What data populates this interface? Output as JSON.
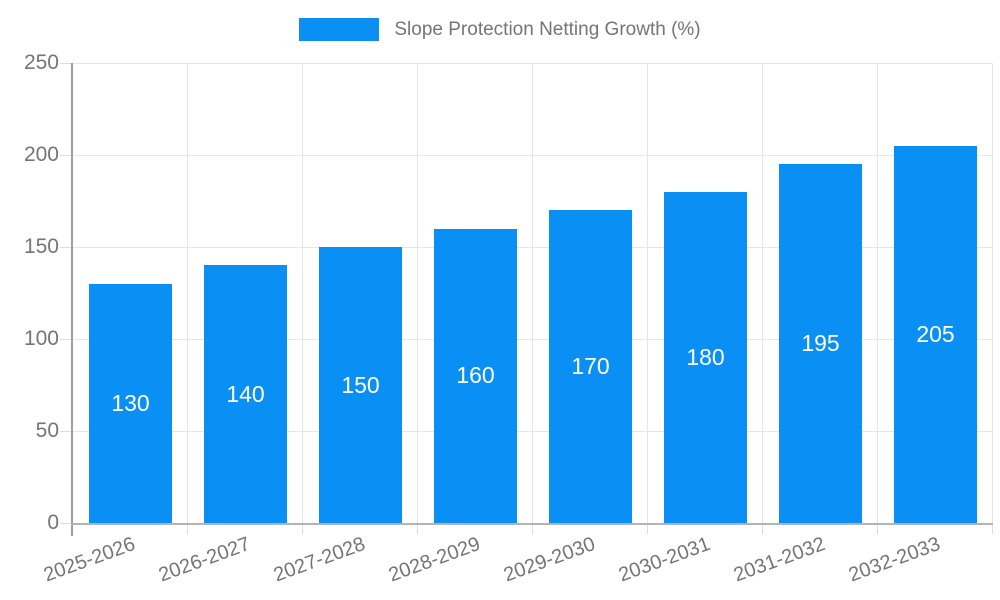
{
  "chart_data": {
    "type": "bar",
    "title": "Slope Protection Netting Growth (%)",
    "categories": [
      "2025-2026",
      "2026-2027",
      "2027-2028",
      "2028-2029",
      "2029-2030",
      "2030-2031",
      "2031-2032",
      "2032-2033"
    ],
    "values": [
      130,
      140,
      150,
      160,
      170,
      180,
      195,
      205
    ],
    "series": [
      {
        "name": "Slope Protection Netting Growth (%)",
        "values": [
          130,
          140,
          150,
          160,
          170,
          180,
          195,
          205
        ]
      }
    ],
    "xlabel": "",
    "ylabel": "",
    "ylim": [
      0,
      250
    ],
    "yticks": [
      0,
      50,
      100,
      150,
      200,
      250
    ],
    "grid": true,
    "legend_position": "top",
    "bar_labels_visible": true,
    "colors": {
      "bar": "#0a90f5",
      "bar_value_label": "#ffffff",
      "axis_text": "#757575",
      "gridline": "#e6e6e6",
      "y_axis_line": "#9e9e9e",
      "x_axis_line": "#b3b3b3",
      "background": "#ffffff"
    }
  }
}
